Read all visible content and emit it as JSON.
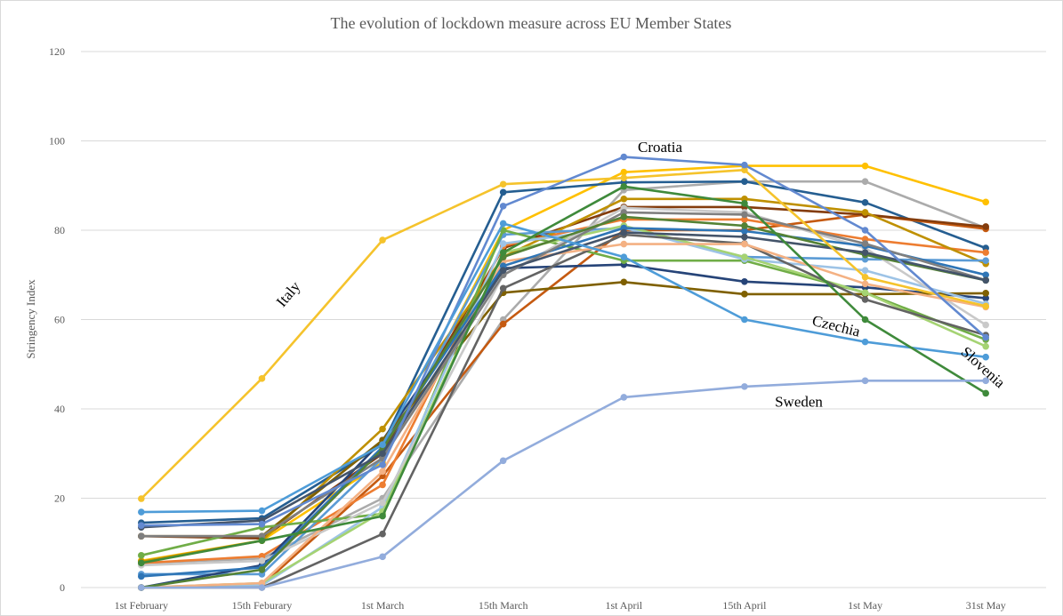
{
  "chart_data": {
    "type": "line",
    "title": "The evolution of lockdown measure across EU Member States",
    "xlabel": "",
    "ylabel": "Stringency Index",
    "ylim": [
      0,
      120
    ],
    "yticks": [
      0,
      20,
      40,
      60,
      80,
      100,
      120
    ],
    "grid": true,
    "legend": "none",
    "categories": [
      "1st February",
      "15th Feburary",
      "1st March",
      "15th March",
      "1st April",
      "15th April",
      "1st May",
      "31st May"
    ],
    "annotations": [
      {
        "text": "Italy",
        "x": 1.25,
        "y": 65,
        "rotate": -50
      },
      {
        "text": "Croatia",
        "x": 4.3,
        "y": 97.5,
        "rotate": 0
      },
      {
        "text": "Czechia",
        "x": 5.75,
        "y": 57.5,
        "rotate": 14
      },
      {
        "text": "Slovenia",
        "x": 6.95,
        "y": 48.5,
        "rotate": 42
      },
      {
        "text": "Sweden",
        "x": 5.45,
        "y": 40.5,
        "rotate": 0
      }
    ],
    "series": [
      {
        "name": "Italy",
        "color": "#F5C32C",
        "values": [
          19.9,
          46.8,
          77.8,
          90.3,
          91.7,
          93.5,
          69.5,
          63.0
        ]
      },
      {
        "name": "Croatia",
        "color": "#6289D0",
        "values": [
          13.9,
          14.2,
          27.5,
          85.4,
          96.4,
          94.6,
          80.0,
          56.0
        ]
      },
      {
        "name": "Czechia",
        "color": "#4E9CD8",
        "values": [
          16.9,
          17.2,
          32.0,
          81.5,
          74.0,
          60.0,
          55.0,
          51.6
        ]
      },
      {
        "name": "Slovenia",
        "color": "#3F8A3B",
        "values": [
          5.5,
          10.5,
          16.0,
          75.0,
          89.8,
          86.0,
          60.0,
          43.5
        ]
      },
      {
        "name": "Sweden",
        "color": "#92ACDC",
        "values": [
          0.0,
          0.0,
          6.9,
          28.4,
          42.6,
          45.0,
          46.3,
          46.3
        ]
      },
      {
        "color": "#FFC000",
        "values": [
          6.0,
          10.5,
          28.0,
          80.0,
          93.0,
          94.4,
          94.4,
          86.3
        ]
      },
      {
        "color": "#ABABAB",
        "values": [
          5.5,
          6.5,
          20.0,
          60.0,
          89.0,
          90.9,
          90.9,
          80.5
        ]
      },
      {
        "color": "#255E91",
        "values": [
          14.5,
          15.5,
          32.0,
          88.5,
          90.7,
          90.9,
          86.2,
          76.0
        ]
      },
      {
        "color": "#C55A11",
        "values": [
          0.0,
          0.5,
          25.0,
          59.0,
          80.0,
          80.0,
          83.5,
          80.3
        ]
      },
      {
        "color": "#843C0C",
        "values": [
          11.5,
          11.0,
          30.0,
          76.0,
          85.2,
          85.2,
          83.5,
          80.8
        ]
      },
      {
        "color": "#ED7D31",
        "values": [
          5.5,
          7.0,
          23.0,
          76.5,
          82.4,
          82.4,
          78.0,
          75.0
        ]
      },
      {
        "color": "#BF9000",
        "values": [
          5.8,
          10.5,
          35.5,
          74.0,
          87.0,
          87.0,
          84.0,
          72.5
        ]
      },
      {
        "color": "#5B9BD5",
        "values": [
          3.0,
          3.0,
          29.0,
          79.0,
          80.5,
          74.0,
          73.5,
          73.2
        ]
      },
      {
        "color": "#264478",
        "values": [
          0.0,
          5.0,
          33.0,
          71.5,
          72.3,
          68.5,
          67.2,
          64.8
        ]
      },
      {
        "color": "#7F6000",
        "values": [
          11.5,
          11.5,
          33.0,
          66.0,
          68.4,
          65.7,
          65.7,
          65.9
        ]
      },
      {
        "color": "#70AD47",
        "values": [
          7.2,
          13.5,
          16.5,
          80.0,
          73.2,
          73.2,
          66.0,
          55.5
        ]
      },
      {
        "color": "#9DC3E6",
        "values": [
          0.0,
          0.5,
          18.0,
          77.0,
          80.6,
          73.5,
          71.0,
          63.5
        ]
      },
      {
        "color": "#A5D373",
        "values": [
          0.0,
          1.0,
          17.0,
          75.0,
          81.0,
          74.0,
          66.0,
          54.0
        ]
      },
      {
        "color": "#636363",
        "values": [
          0.0,
          0.0,
          12.0,
          67.0,
          79.0,
          77.0,
          64.5,
          56.5
        ]
      },
      {
        "color": "#C9C9C9",
        "values": [
          5.0,
          6.0,
          19.0,
          70.0,
          85.0,
          84.0,
          76.0,
          58.8
        ]
      },
      {
        "color": "#F4B183",
        "values": [
          0.0,
          1.0,
          26.0,
          73.0,
          76.9,
          76.9,
          68.0,
          62.8
        ]
      },
      {
        "color": "#2E75B6",
        "values": [
          2.5,
          4.5,
          31.5,
          72.0,
          80.5,
          79.8,
          76.5,
          70.0
        ]
      },
      {
        "color": "#7F7F7F",
        "values": [
          11.5,
          11.5,
          29.0,
          70.0,
          84.0,
          83.5,
          77.0,
          68.8
        ]
      },
      {
        "color": "#548235",
        "values": [
          0.0,
          4.0,
          31.0,
          74.0,
          83.0,
          81.0,
          74.5,
          68.8
        ]
      },
      {
        "color": "#44546A",
        "values": [
          13.5,
          15.0,
          30.0,
          71.0,
          79.5,
          78.5,
          75.0,
          68.8
        ]
      }
    ]
  }
}
